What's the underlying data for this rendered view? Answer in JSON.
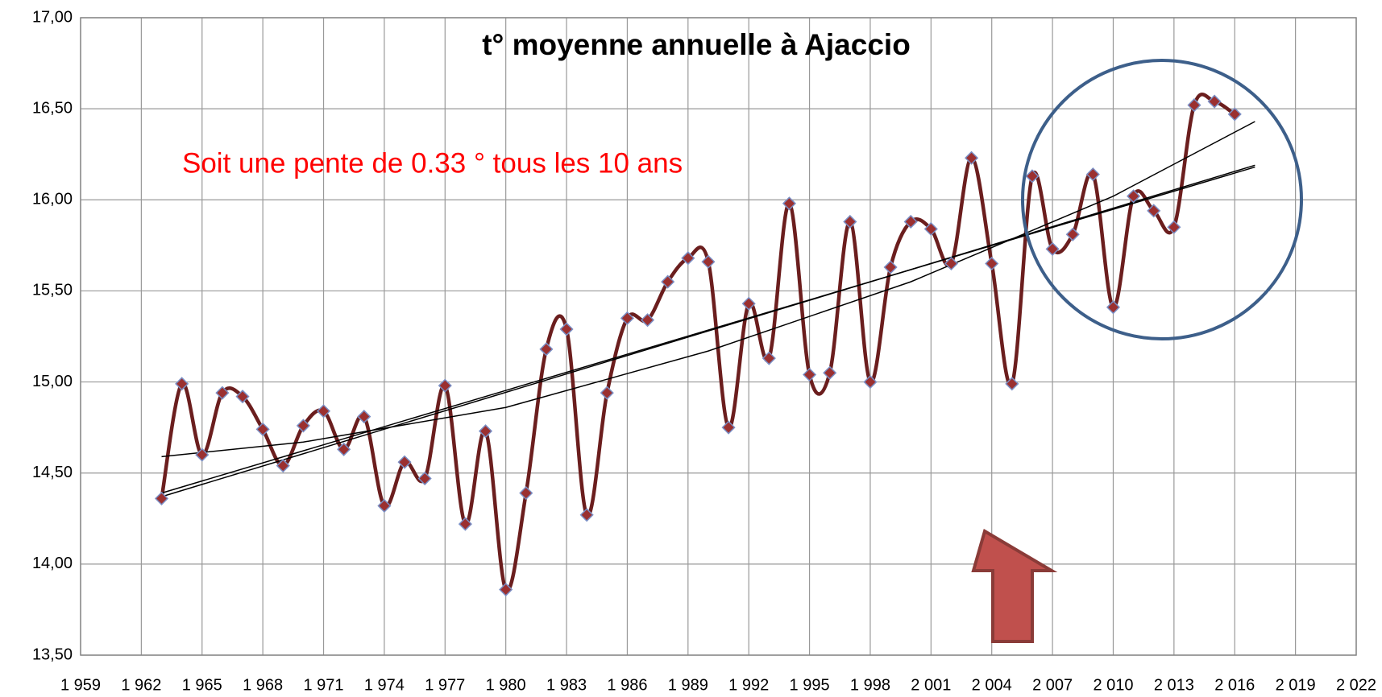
{
  "chart_data": {
    "type": "line",
    "title": "t° moyenne annuelle à Ajaccio",
    "annotation": "Soit une pente de 0.33 ° tous les 10 ans",
    "x": [
      1963,
      1964,
      1965,
      1966,
      1967,
      1968,
      1969,
      1970,
      1971,
      1972,
      1973,
      1974,
      1975,
      1976,
      1977,
      1978,
      1979,
      1980,
      1981,
      1982,
      1983,
      1984,
      1985,
      1986,
      1987,
      1988,
      1989,
      1990,
      1991,
      1992,
      1993,
      1994,
      1995,
      1996,
      1997,
      1998,
      1999,
      2000,
      2001,
      2002,
      2003,
      2004,
      2005,
      2006,
      2007,
      2008,
      2009,
      2010,
      2011,
      2012,
      2013,
      2014,
      2015,
      2016
    ],
    "series": [
      {
        "color": "#6b1e1e",
        "marker_color": "#9b3030",
        "values": [
          14.36,
          14.99,
          14.6,
          14.94,
          14.92,
          14.74,
          14.54,
          14.76,
          14.84,
          14.63,
          14.81,
          14.32,
          14.56,
          14.47,
          14.98,
          14.22,
          14.73,
          13.86,
          14.39,
          15.18,
          15.29,
          14.27,
          14.94,
          15.35,
          15.34,
          15.55,
          15.68,
          15.66,
          14.75,
          15.43,
          15.13,
          15.98,
          15.04,
          15.05,
          15.88,
          15.0,
          15.63,
          15.88,
          15.84,
          15.65,
          16.23,
          15.65,
          14.99,
          16.13,
          15.73,
          15.81,
          16.14,
          15.41,
          16.02,
          15.94,
          15.85,
          16.52,
          16.54,
          16.47
        ]
      }
    ],
    "trendlines": [
      {
        "color": "#000000",
        "x": [
          1963,
          2017
        ],
        "values": [
          14.37,
          16.19
        ]
      },
      {
        "color": "#000000",
        "x": [
          1963,
          2017
        ],
        "values": [
          14.39,
          16.18
        ]
      },
      {
        "color": "#000000",
        "x": [
          1963,
          1970,
          1980,
          1990,
          2000,
          2010,
          2017
        ],
        "values": [
          14.59,
          14.67,
          14.86,
          15.17,
          15.55,
          16.02,
          16.43
        ]
      }
    ],
    "xlim": [
      1959,
      2022
    ],
    "xticks": [
      {
        "value": 1959,
        "label": "1 959"
      },
      {
        "value": 1962,
        "label": "1 962"
      },
      {
        "value": 1965,
        "label": "1 965"
      },
      {
        "value": 1968,
        "label": "1 968"
      },
      {
        "value": 1971,
        "label": "1 971"
      },
      {
        "value": 1974,
        "label": "1 974"
      },
      {
        "value": 1977,
        "label": "1 977"
      },
      {
        "value": 1980,
        "label": "1 980"
      },
      {
        "value": 1983,
        "label": "1 983"
      },
      {
        "value": 1986,
        "label": "1 986"
      },
      {
        "value": 1989,
        "label": "1 989"
      },
      {
        "value": 1992,
        "label": "1 992"
      },
      {
        "value": 1995,
        "label": "1 995"
      },
      {
        "value": 1998,
        "label": "1 998"
      },
      {
        "value": 2001,
        "label": "2 001"
      },
      {
        "value": 2004,
        "label": "2 004"
      },
      {
        "value": 2007,
        "label": "2 007"
      },
      {
        "value": 2010,
        "label": "2 010"
      },
      {
        "value": 2013,
        "label": "2 013"
      },
      {
        "value": 2016,
        "label": "2 016"
      },
      {
        "value": 2019,
        "label": "2 019"
      },
      {
        "value": 2022,
        "label": "2 022"
      }
    ],
    "ylim": [
      13.5,
      17
    ],
    "yticks": [
      {
        "value": 13.5,
        "label": "13,50"
      },
      {
        "value": 14,
        "label": "14,00"
      },
      {
        "value": 14.5,
        "label": "14,50"
      },
      {
        "value": 15,
        "label": "15,00"
      },
      {
        "value": 15.5,
        "label": "15,50"
      },
      {
        "value": 16,
        "label": "16,00"
      },
      {
        "value": 16.5,
        "label": "16,50"
      },
      {
        "value": 17,
        "label": "17,00"
      }
    ],
    "grid": true
  }
}
